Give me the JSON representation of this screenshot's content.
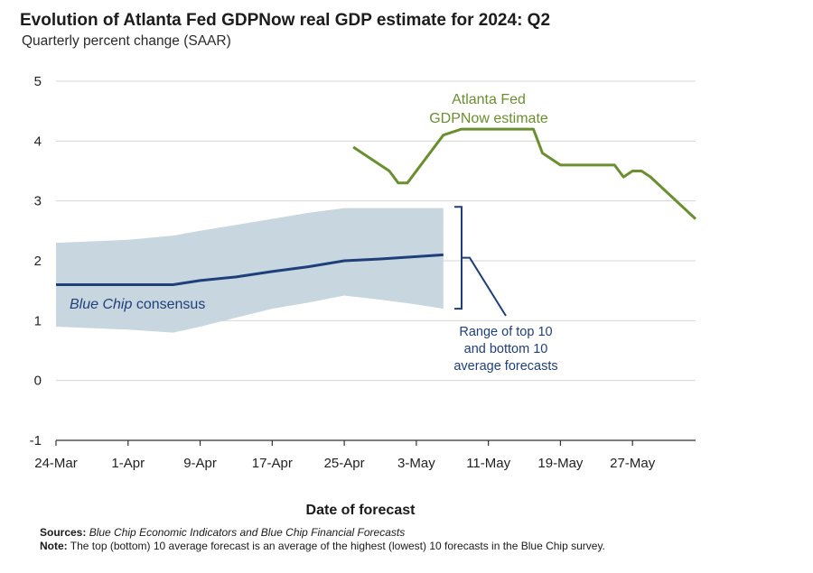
{
  "chart_data": {
    "type": "line",
    "title": "Evolution of Atlanta Fed GDPNow real GDP estimate for 2024: Q2",
    "subtitle": "Quarterly percent change (SAAR)",
    "xlabel": "Date of forecast",
    "ylabel": "",
    "ylim": [
      -1,
      5
    ],
    "yticks": [
      "5",
      "4",
      "3",
      "2",
      "1",
      "0",
      "-1"
    ],
    "xlim": [
      "2024-03-24",
      "2024-06-03"
    ],
    "xticks": [
      "24-Mar",
      "1-Apr",
      "9-Apr",
      "17-Apr",
      "25-Apr",
      "3-May",
      "11-May",
      "19-May",
      "27-May"
    ],
    "grid": true,
    "series": [
      {
        "name": "Atlanta Fed GDPNow estimate",
        "label_line1": "Atlanta Fed",
        "label_line2": "GDPNow estimate",
        "color": "#6a8f2e",
        "x": [
          "2024-04-26",
          "2024-04-28",
          "2024-04-30",
          "2024-05-01",
          "2024-05-02",
          "2024-05-06",
          "2024-05-08",
          "2024-05-10",
          "2024-05-14",
          "2024-05-16",
          "2024-05-17",
          "2024-05-19",
          "2024-05-23",
          "2024-05-25",
          "2024-05-26",
          "2024-05-27",
          "2024-05-28",
          "2024-05-29",
          "2024-06-03"
        ],
        "values": [
          3.9,
          3.7,
          3.5,
          3.3,
          3.3,
          4.1,
          4.2,
          4.2,
          4.2,
          4.2,
          3.8,
          3.6,
          3.6,
          3.6,
          3.4,
          3.5,
          3.5,
          3.4,
          2.7
        ]
      },
      {
        "name": "Blue Chip consensus",
        "label_italic": "Blue Chip",
        "label_rest": " consensus",
        "color": "#1f3f7a",
        "x": [
          "2024-03-24",
          "2024-04-01",
          "2024-04-06",
          "2024-04-09",
          "2024-04-13",
          "2024-04-17",
          "2024-04-21",
          "2024-04-25",
          "2024-04-29",
          "2024-05-03",
          "2024-05-06"
        ],
        "values": [
          1.6,
          1.6,
          1.6,
          1.67,
          1.73,
          1.82,
          1.9,
          2.0,
          2.03,
          2.07,
          2.1
        ]
      }
    ],
    "range_band": {
      "name": "Range of top 10 and bottom 10 average forecasts",
      "label_lines": [
        "Range of top 10",
        "and bottom 10",
        "average forecasts"
      ],
      "color": "#c8d6e0",
      "x": [
        "2024-03-24",
        "2024-04-01",
        "2024-04-06",
        "2024-04-09",
        "2024-04-13",
        "2024-04-17",
        "2024-04-21",
        "2024-04-25",
        "2024-04-29",
        "2024-05-03",
        "2024-05-06"
      ],
      "upper": [
        2.3,
        2.35,
        2.42,
        2.5,
        2.6,
        2.7,
        2.8,
        2.88,
        2.88,
        2.88,
        2.88
      ],
      "lower": [
        0.9,
        0.85,
        0.8,
        0.9,
        1.05,
        1.2,
        1.3,
        1.42,
        1.35,
        1.27,
        1.2
      ]
    }
  },
  "footer": {
    "sources_label": "Sources:",
    "sources_text": "Blue Chip Economic Indicators and Blue Chip Financial Forecasts",
    "note_label": "Note:",
    "note_text": "The top (bottom) 10 average forecast is an average of the highest (lowest) 10 forecasts in the Blue Chip survey."
  }
}
